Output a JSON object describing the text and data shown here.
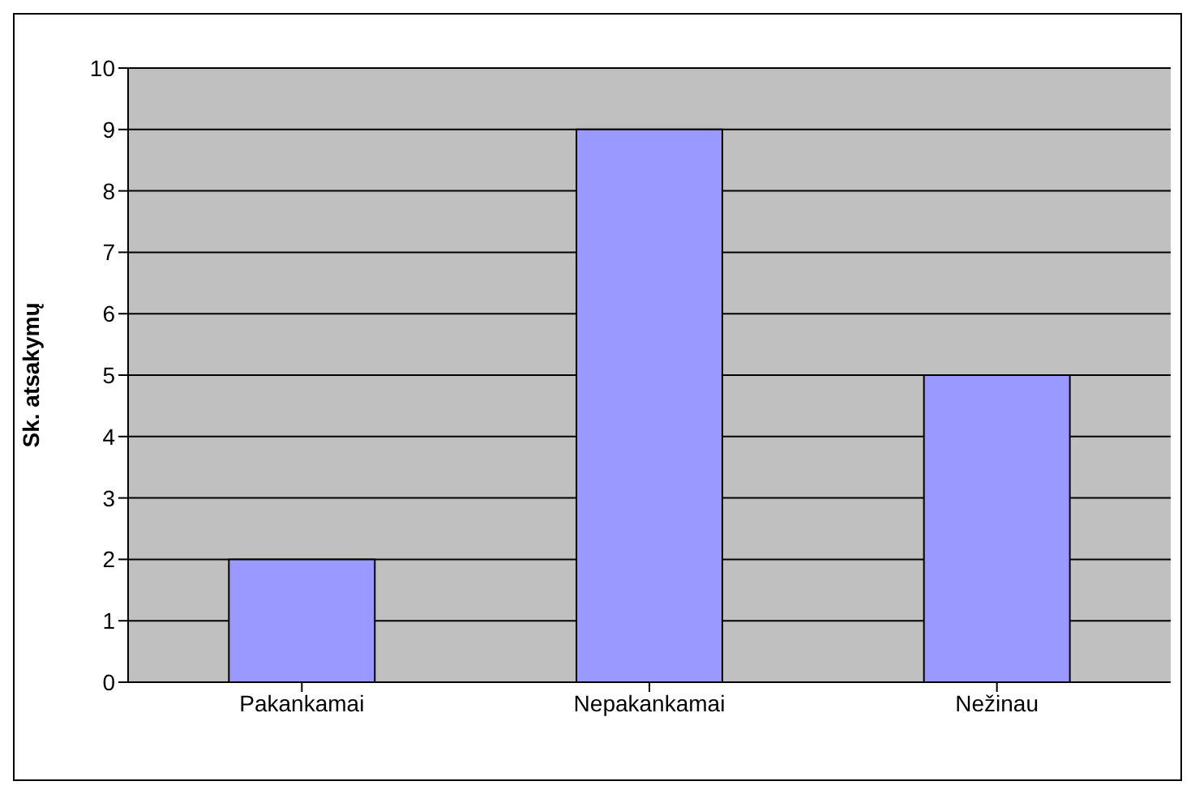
{
  "chart_data": {
    "type": "bar",
    "ylabel": "Sk. atsakymų",
    "categories": [
      "Pakankamai",
      "Nepakankamai",
      "Nežinau"
    ],
    "values": [
      2,
      9,
      5
    ],
    "color": "#9999ff",
    "ylim": [
      0,
      10
    ],
    "yticks": [
      0,
      1,
      2,
      3,
      4,
      5,
      6,
      7,
      8,
      9,
      10
    ],
    "grid": "y"
  }
}
